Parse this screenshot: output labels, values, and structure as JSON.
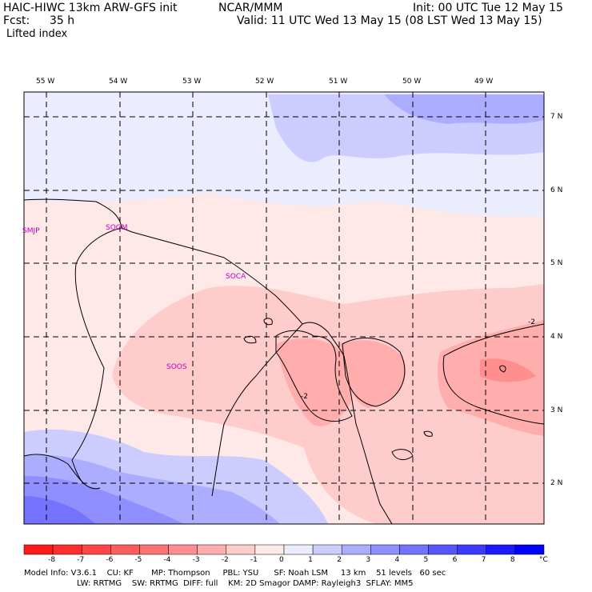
{
  "header": {
    "model_title": "HAIC-HIWC 13km ARW-GFS init",
    "org": "NCAR/MMM",
    "init": "Init: 00 UTC Tue 12 May 15",
    "fcst_label": "Fcst:",
    "fcst_value": "35 h",
    "valid": "Valid: 11 UTC Wed 13 May 15 (08 LST Wed 13 May 15)",
    "field": "Lifted index"
  },
  "map": {
    "lon_labels": [
      "55 W",
      "54 W",
      "53 W",
      "52 W",
      "51 W",
      "50 W",
      "49 W"
    ],
    "lat_labels": [
      "7 N",
      "6 N",
      "5 N",
      "4 N",
      "3 N",
      "2 N"
    ],
    "stations": [
      "SMJP",
      "SOGM",
      "SOCA",
      "SOOS"
    ],
    "contour_labels": [
      "-2",
      "-2"
    ]
  },
  "colorbar": {
    "ticks": [
      "-8",
      "-7",
      "-6",
      "-5",
      "-4",
      "-3",
      "-2",
      "-1",
      "0",
      "1",
      "2",
      "3",
      "4",
      "5",
      "6",
      "7",
      "8"
    ],
    "unit": "°C",
    "colors": [
      "#ff1a1a",
      "#ff2e2e",
      "#ff4545",
      "#ff5c5c",
      "#ff7373",
      "#ff8f8f",
      "#ffadad",
      "#ffcccc",
      "#ffe8e8",
      "#ececff",
      "#ccccff",
      "#adadff",
      "#8f8fff",
      "#7373ff",
      "#5656ff",
      "#3b3bff",
      "#1a1aff",
      "#0000ff"
    ]
  },
  "model_info": {
    "line1": "Model Info: V3.6.1    CU: KF       MP: Thompson     PBL: YSU      SF: Noah LSM     13 km    51 levels   60 sec",
    "line2": "LW: RRTMG    SW: RRTMG  DIFF: full    KM: 2D Smagor DAMP: Rayleigh3  SFLAY: MM5"
  }
}
